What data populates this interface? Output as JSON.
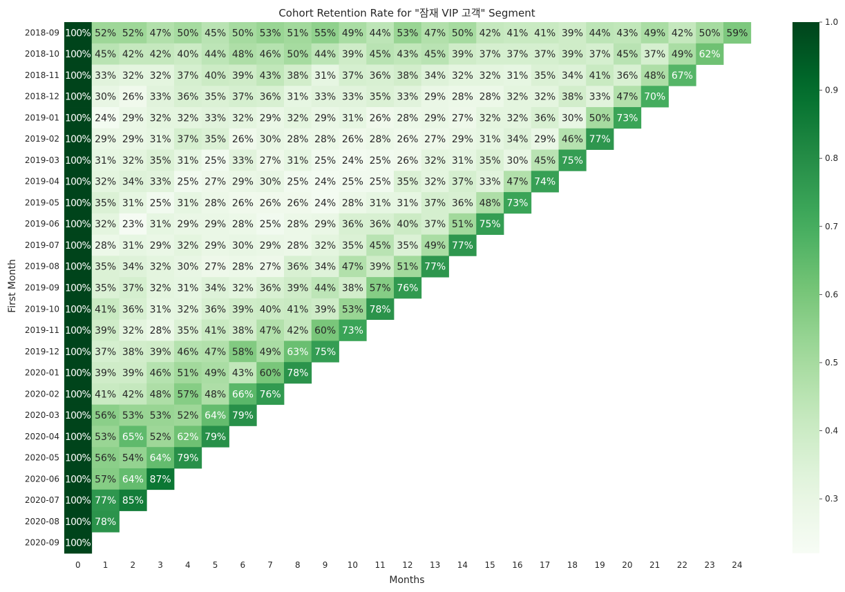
{
  "chart_data": {
    "type": "heatmap",
    "title": "Cohort Retention Rate for \"잠재 VIP 고객\" Segment",
    "xlabel": "Months",
    "ylabel": "First Month",
    "x": [
      0,
      1,
      2,
      3,
      4,
      5,
      6,
      7,
      8,
      9,
      10,
      11,
      12,
      13,
      14,
      15,
      16,
      17,
      18,
      19,
      20,
      21,
      22,
      23,
      24
    ],
    "y": [
      "2018-09",
      "2018-10",
      "2018-11",
      "2018-12",
      "2019-01",
      "2019-02",
      "2019-03",
      "2019-04",
      "2019-05",
      "2019-06",
      "2019-07",
      "2019-08",
      "2019-09",
      "2019-10",
      "2019-11",
      "2019-12",
      "2020-01",
      "2020-02",
      "2020-03",
      "2020-04",
      "2020-05",
      "2020-06",
      "2020-07",
      "2020-08",
      "2020-09"
    ],
    "values": [
      [
        100,
        52,
        52,
        47,
        50,
        45,
        50,
        53,
        51,
        55,
        49,
        44,
        53,
        47,
        50,
        42,
        41,
        41,
        39,
        44,
        43,
        49,
        42,
        50,
        59
      ],
      [
        100,
        45,
        42,
        42,
        40,
        44,
        48,
        46,
        50,
        44,
        39,
        45,
        43,
        45,
        39,
        37,
        37,
        37,
        39,
        37,
        45,
        37,
        49,
        62
      ],
      [
        100,
        33,
        32,
        32,
        37,
        40,
        39,
        43,
        38,
        31,
        37,
        36,
        38,
        34,
        32,
        32,
        31,
        35,
        34,
        41,
        36,
        48,
        67
      ],
      [
        100,
        30,
        26,
        33,
        36,
        35,
        37,
        36,
        31,
        33,
        33,
        35,
        33,
        29,
        28,
        28,
        32,
        32,
        38,
        33,
        47,
        70
      ],
      [
        100,
        24,
        29,
        32,
        32,
        33,
        32,
        29,
        32,
        29,
        31,
        26,
        28,
        29,
        27,
        32,
        32,
        36,
        30,
        50,
        73
      ],
      [
        100,
        29,
        29,
        31,
        37,
        35,
        26,
        30,
        28,
        28,
        26,
        28,
        26,
        27,
        29,
        31,
        34,
        29,
        46,
        77
      ],
      [
        100,
        31,
        32,
        35,
        31,
        25,
        33,
        27,
        31,
        25,
        24,
        25,
        26,
        32,
        31,
        35,
        30,
        45,
        75
      ],
      [
        100,
        32,
        34,
        33,
        25,
        27,
        29,
        30,
        25,
        24,
        25,
        25,
        35,
        32,
        37,
        33,
        47,
        74
      ],
      [
        100,
        35,
        31,
        25,
        31,
        28,
        26,
        26,
        26,
        24,
        28,
        31,
        31,
        37,
        36,
        48,
        73
      ],
      [
        100,
        32,
        23,
        31,
        29,
        29,
        28,
        25,
        28,
        29,
        36,
        36,
        40,
        37,
        51,
        75
      ],
      [
        100,
        28,
        31,
        29,
        32,
        29,
        30,
        29,
        28,
        32,
        35,
        45,
        35,
        49,
        77
      ],
      [
        100,
        35,
        34,
        32,
        30,
        27,
        28,
        27,
        36,
        34,
        47,
        39,
        51,
        77
      ],
      [
        100,
        35,
        37,
        32,
        31,
        34,
        32,
        36,
        39,
        44,
        38,
        57,
        76
      ],
      [
        100,
        41,
        36,
        31,
        32,
        36,
        39,
        40,
        41,
        39,
        53,
        78
      ],
      [
        100,
        39,
        32,
        28,
        35,
        41,
        38,
        47,
        42,
        60,
        73
      ],
      [
        100,
        37,
        38,
        39,
        46,
        47,
        58,
        49,
        63,
        75
      ],
      [
        100,
        39,
        39,
        46,
        51,
        49,
        43,
        60,
        78
      ],
      [
        100,
        41,
        42,
        48,
        57,
        48,
        66,
        76
      ],
      [
        100,
        56,
        53,
        53,
        52,
        64,
        79
      ],
      [
        100,
        53,
        65,
        52,
        62,
        79
      ],
      [
        100,
        56,
        54,
        64,
        79
      ],
      [
        100,
        57,
        64,
        87
      ],
      [
        100,
        77,
        85
      ],
      [
        100,
        78
      ],
      [
        100
      ]
    ],
    "value_suffix": "%",
    "color_scale": "Greens",
    "vmin": 0.22,
    "vmax": 1.0,
    "colorbar_ticks": [
      "0.3",
      "0.4",
      "0.5",
      "0.6",
      "0.7",
      "0.8",
      "0.9",
      "1.0"
    ],
    "grid": false,
    "legend": "colorbar-right"
  }
}
